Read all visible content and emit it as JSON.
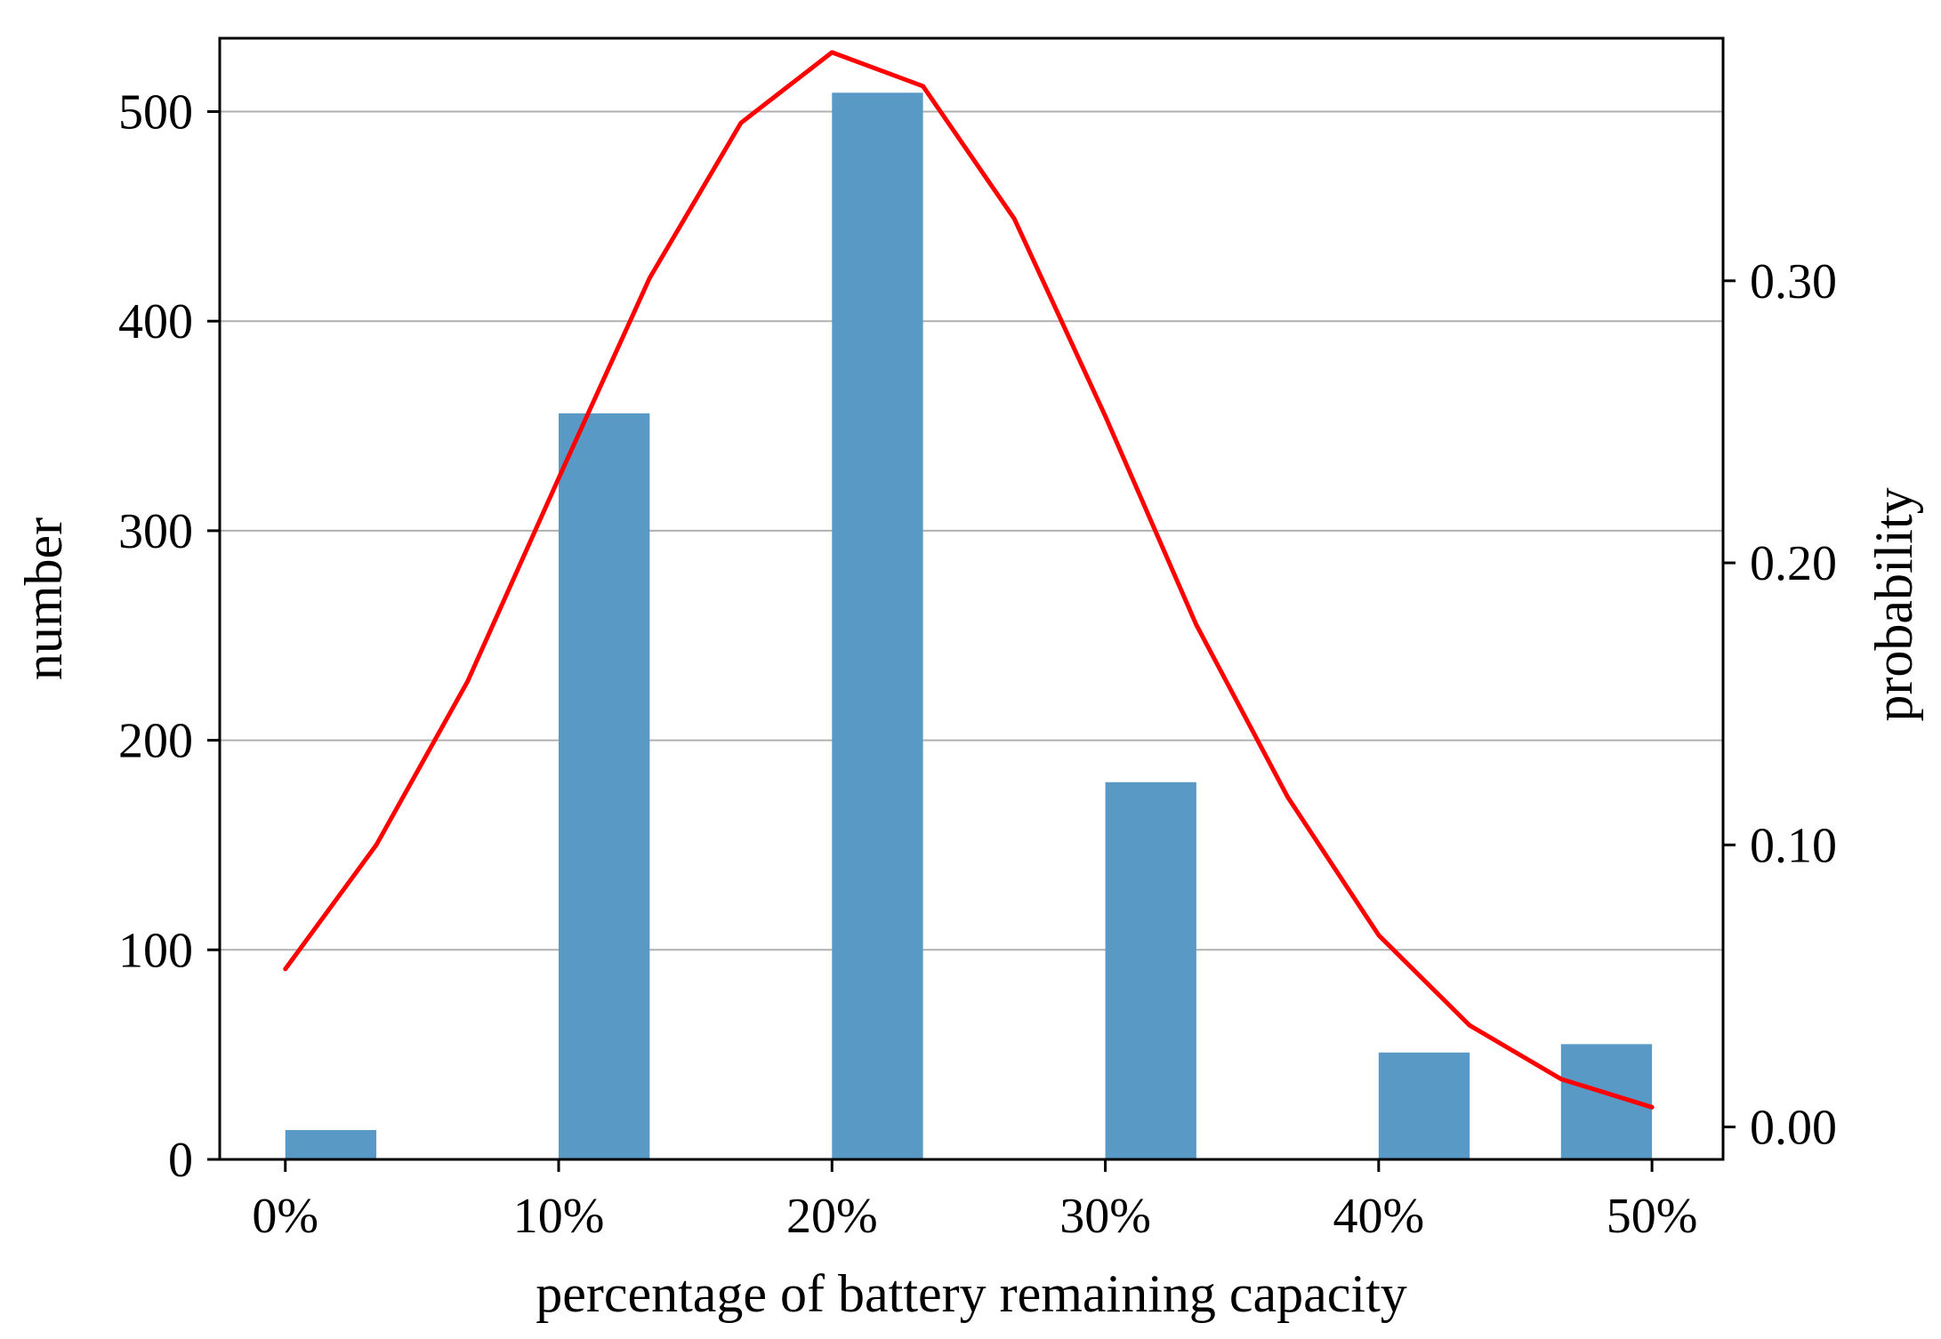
{
  "chart_data": {
    "type": "bar",
    "title": "",
    "xlabel": "percentage of battery remaining capacity",
    "ylabel": "number",
    "y2label": "probability",
    "x_ticks": [
      {
        "value": 0,
        "label": "0%"
      },
      {
        "value": 10,
        "label": "10%"
      },
      {
        "value": 20,
        "label": "20%"
      },
      {
        "value": 30,
        "label": "30%"
      },
      {
        "value": 40,
        "label": "40%"
      },
      {
        "value": 50,
        "label": "50%"
      }
    ],
    "xlim": [
      -2.4,
      52.6
    ],
    "ylim": [
      0,
      535
    ],
    "y_ticks": [
      {
        "value": 0,
        "label": "0"
      },
      {
        "value": 100,
        "label": "100"
      },
      {
        "value": 200,
        "label": "200"
      },
      {
        "value": 300,
        "label": "300"
      },
      {
        "value": 400,
        "label": "400"
      },
      {
        "value": 500,
        "label": "500"
      }
    ],
    "y2lim": [
      -0.0115,
      0.386
    ],
    "y2_ticks": [
      {
        "value": 0.0,
        "label": "0.00"
      },
      {
        "value": 0.1,
        "label": "0.10"
      },
      {
        "value": 0.2,
        "label": "0.20"
      },
      {
        "value": 0.3,
        "label": "0.30"
      }
    ],
    "grid": "y",
    "bars": {
      "name": "number",
      "axis": "left",
      "color": "#5899C6",
      "width": 3.33,
      "values": [
        {
          "x_start": 0,
          "value": 14
        },
        {
          "x_start": 10,
          "value": 356
        },
        {
          "x_start": 20,
          "value": 509
        },
        {
          "x_start": 30,
          "value": 180
        },
        {
          "x_start": 40,
          "value": 51
        },
        {
          "x_start": 46.67,
          "value": 55
        }
      ]
    },
    "line": {
      "name": "probability",
      "axis": "right",
      "color": "#FF0000",
      "points": [
        {
          "x": 0,
          "y": 0.056
        },
        {
          "x": 3.33,
          "y": 0.1
        },
        {
          "x": 6.67,
          "y": 0.158
        },
        {
          "x": 10,
          "y": 0.23
        },
        {
          "x": 13.33,
          "y": 0.301
        },
        {
          "x": 16.67,
          "y": 0.356
        },
        {
          "x": 20,
          "y": 0.381
        },
        {
          "x": 23.33,
          "y": 0.369
        },
        {
          "x": 26.67,
          "y": 0.322
        },
        {
          "x": 30,
          "y": 0.252
        },
        {
          "x": 33.33,
          "y": 0.178
        },
        {
          "x": 36.67,
          "y": 0.117
        },
        {
          "x": 40,
          "y": 0.068
        },
        {
          "x": 43.33,
          "y": 0.036
        },
        {
          "x": 46.67,
          "y": 0.017
        },
        {
          "x": 50,
          "y": 0.007
        }
      ]
    }
  }
}
